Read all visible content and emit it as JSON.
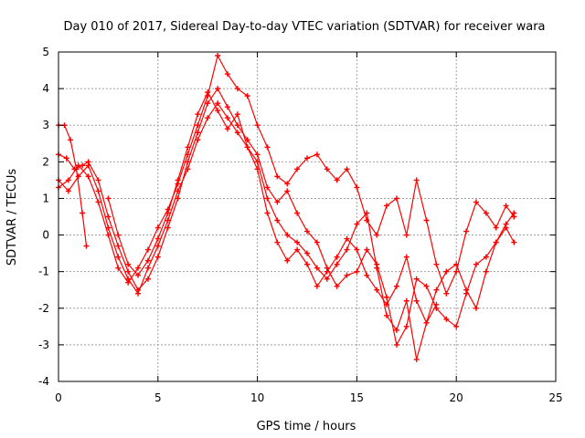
{
  "chart_data": {
    "type": "scatter",
    "title": "Day 010 of 2017, Sidereal Day-to-day VTEC variation (SDTVAR) for receiver wara",
    "xlabel": "GPS time / hours",
    "ylabel": "SDTVAR / TECUs",
    "xlim": [
      0,
      25
    ],
    "ylim": [
      -4,
      5
    ],
    "xticks": [
      0,
      5,
      10,
      15,
      20,
      25
    ],
    "yticks": [
      -4,
      -3,
      -2,
      -1,
      0,
      1,
      2,
      3,
      4,
      5
    ],
    "grid": true,
    "marker": "+",
    "color": "#ff0000",
    "series": [
      {
        "x": [
          0,
          0.3,
          0.6,
          0.9,
          1.2,
          1.4
        ],
        "y": [
          3.0,
          3.0,
          2.6,
          1.8,
          0.6,
          -0.3
        ]
      },
      {
        "x": [
          0,
          0.4,
          0.8,
          1.2,
          1.5,
          2.0,
          2.5,
          3.0,
          3.5,
          4.0,
          4.5,
          5.0,
          5.5,
          6.0,
          6.5,
          7.0,
          7.5,
          8.0,
          8.5,
          9.0,
          9.5,
          10.0,
          10.5,
          11.0,
          11.5,
          12.0,
          12.5,
          13.0,
          13.5,
          14.0,
          14.5,
          15.0,
          15.5,
          16.0,
          16.5,
          17.0,
          17.5,
          18.0,
          18.5,
          19.0,
          19.5,
          20.0,
          20.5,
          21.0,
          21.5,
          22.0,
          22.5,
          22.9
        ],
        "y": [
          2.2,
          2.1,
          1.8,
          1.9,
          2.0,
          1.5,
          0.5,
          -0.3,
          -1.0,
          -1.5,
          -1.2,
          -0.6,
          0.2,
          1.0,
          2.0,
          2.8,
          3.6,
          4.0,
          3.5,
          3.0,
          2.6,
          2.2,
          1.3,
          0.9,
          1.2,
          0.6,
          0.1,
          -0.2,
          -0.9,
          -1.4,
          -1.1,
          -1.0,
          -0.4,
          -0.8,
          -1.7,
          -3.0,
          -2.5,
          -1.2,
          -1.4,
          -2.0,
          -2.3,
          -2.5,
          -1.6,
          -0.8,
          -0.6,
          -0.2,
          0.3,
          0.6
        ]
      },
      {
        "x": [
          0,
          0.5,
          1.0,
          1.5,
          2.0,
          2.5,
          3.0,
          3.5,
          4.0,
          4.5,
          5.0,
          5.5,
          6.0,
          6.5,
          7.0,
          7.5,
          8.0,
          8.5,
          9.0,
          9.5,
          10.0,
          10.5,
          11.0,
          11.5,
          12.0,
          12.5,
          13.0,
          13.5,
          14.0,
          14.5,
          15.0,
          15.5,
          16.0,
          16.5,
          17.0,
          17.5,
          18.0,
          18.5,
          19.0,
          19.5,
          20.0,
          20.5,
          21.0,
          21.5,
          22.0,
          22.5,
          22.9
        ],
        "y": [
          1.5,
          1.2,
          1.6,
          1.9,
          1.2,
          0.2,
          -0.6,
          -1.2,
          -1.6,
          -0.9,
          -0.3,
          0.4,
          1.2,
          1.8,
          2.6,
          3.2,
          3.6,
          3.2,
          2.8,
          2.4,
          2.0,
          1.0,
          0.4,
          0.0,
          -0.2,
          -0.5,
          -0.9,
          -1.2,
          -0.8,
          -0.4,
          0.3,
          0.6,
          -0.9,
          -2.2,
          -2.6,
          -1.8,
          -3.4,
          -2.4,
          -1.5,
          -1.0,
          -0.8,
          -1.5,
          -2.0,
          -1.0,
          -0.2,
          0.2,
          -0.2
        ]
      },
      {
        "x": [
          0,
          0.5,
          1.0,
          1.5,
          2.0,
          2.5,
          3.0,
          3.5,
          4.0,
          4.5,
          5.0,
          5.5,
          6.0,
          6.5,
          7.0,
          7.5,
          8.0,
          8.5,
          9.0,
          9.5,
          10.0,
          10.5,
          11.0,
          11.5,
          12.0,
          12.5,
          13.0,
          13.5,
          14.0,
          14.5,
          15.0,
          15.5,
          16.0,
          16.5,
          17.0,
          17.5,
          18.0,
          18.5,
          19.0,
          19.5,
          20.0,
          20.5,
          21.0,
          21.5,
          22.0,
          22.5,
          22.9
        ],
        "y": [
          1.3,
          1.5,
          1.9,
          1.6,
          0.9,
          0.0,
          -0.9,
          -1.3,
          -0.9,
          -0.4,
          0.2,
          0.7,
          1.4,
          2.2,
          3.0,
          3.8,
          4.9,
          4.4,
          4.0,
          3.8,
          3.0,
          2.4,
          1.6,
          1.4,
          1.8,
          2.1,
          2.2,
          1.8,
          1.5,
          1.8,
          1.3,
          0.4,
          0.0,
          0.8,
          1.0,
          0.0,
          1.5,
          0.4,
          -0.8,
          -1.6,
          -1.0,
          0.1,
          0.9,
          0.6,
          0.2,
          0.8,
          0.5
        ]
      },
      {
        "x": [
          2.5,
          3.0,
          3.5,
          4.0,
          4.5,
          5.0,
          5.5,
          6.0,
          6.5,
          7.0,
          7.5,
          8.0,
          8.5,
          9.0,
          9.5,
          10.0,
          10.5,
          11.0,
          11.5,
          12.0,
          12.5,
          13.0,
          13.5,
          14.0,
          14.5,
          15.0,
          15.5,
          16.0,
          16.5,
          17.0,
          17.5,
          18.0,
          18.5,
          19.0
        ],
        "y": [
          1.0,
          0.0,
          -0.8,
          -1.1,
          -0.7,
          -0.1,
          0.6,
          1.5,
          2.4,
          3.3,
          3.9,
          3.4,
          2.9,
          3.3,
          2.4,
          1.8,
          0.6,
          -0.2,
          -0.7,
          -0.4,
          -0.8,
          -1.4,
          -1.0,
          -0.6,
          -0.1,
          -0.4,
          -1.1,
          -1.5,
          -1.9,
          -1.4,
          -0.6,
          -1.8,
          -2.4,
          -1.9
        ]
      }
    ]
  }
}
